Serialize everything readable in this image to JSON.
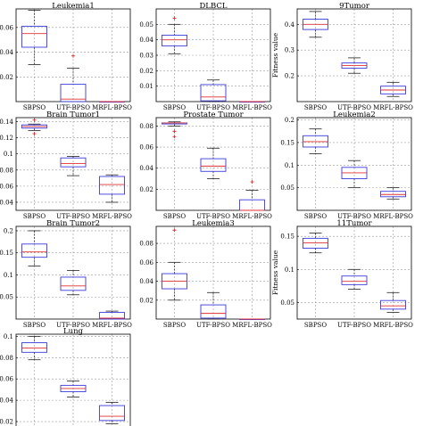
{
  "chart_data": [
    {
      "type": "box",
      "title": "Leukemia1",
      "ylabel": "Fitness value",
      "categories": [
        "SBPSO",
        "UTF-BPSO",
        "MRFL-BPSO"
      ],
      "ylim": [
        0,
        0.075
      ],
      "yticks": [
        0.02,
        0.04,
        0.06
      ],
      "yticklabels": [
        "0.02",
        "0.04",
        "0.06"
      ],
      "boxes": [
        {
          "min": 0.03,
          "q1": 0.044,
          "median": 0.055,
          "q3": 0.061,
          "max": 0.074,
          "outliers": []
        },
        {
          "min": 0,
          "q1": 0,
          "median": 0.002,
          "q3": 0.014,
          "max": 0.027,
          "outliers": [
            0.037
          ]
        },
        {
          "min": 0,
          "q1": 0,
          "median": 0,
          "q3": 0,
          "max": 0,
          "outliers": []
        }
      ]
    },
    {
      "type": "box",
      "title": "DLBCL",
      "ylabel": "",
      "categories": [
        "SBPSO",
        "UTF-BPSO",
        "MRFL-BPSO"
      ],
      "ylim": [
        0,
        0.06
      ],
      "yticks": [
        0.01,
        0.02,
        0.03,
        0.04,
        0.05
      ],
      "yticklabels": [
        "0.01",
        "0.02",
        "0.03",
        "0.04",
        "0.05"
      ],
      "boxes": [
        {
          "min": 0.031,
          "q1": 0.036,
          "median": 0.04,
          "q3": 0.043,
          "max": 0.05,
          "outliers": [
            0.054
          ]
        },
        {
          "min": 0,
          "q1": 0.0005,
          "median": 0.003,
          "q3": 0.011,
          "max": 0.014,
          "outliers": []
        },
        {
          "min": 0,
          "q1": 0,
          "median": 0,
          "q3": 0,
          "max": 0,
          "outliers": []
        }
      ]
    },
    {
      "type": "box",
      "title": "9Tumor",
      "ylabel": "Fitness value",
      "categories": [
        "SBPSO",
        "UTF-BPSO",
        "MRFL-BPSO"
      ],
      "ylim": [
        0.1,
        0.46
      ],
      "yticks": [
        0.2,
        0.3,
        0.4
      ],
      "yticklabels": [
        "0.2",
        "0.3",
        "0.4"
      ],
      "boxes": [
        {
          "min": 0.35,
          "q1": 0.38,
          "median": 0.4,
          "q3": 0.42,
          "max": 0.45,
          "outliers": []
        },
        {
          "min": 0.21,
          "q1": 0.23,
          "median": 0.24,
          "q3": 0.25,
          "max": 0.27,
          "outliers": []
        },
        {
          "min": 0.12,
          "q1": 0.13,
          "median": 0.145,
          "q3": 0.16,
          "max": 0.175,
          "outliers": []
        }
      ]
    },
    {
      "type": "box",
      "title": "Brain Tumor1",
      "ylabel": "Fitness value",
      "categories": [
        "SBPSO",
        "UTF-BPSO",
        "MRFL-BPSO"
      ],
      "ylim": [
        0.03,
        0.145
      ],
      "yticks": [
        0.04,
        0.06,
        0.08,
        0.1,
        0.12,
        0.14
      ],
      "yticklabels": [
        "0.04",
        "0.06",
        "0.08",
        "0.1",
        "0.12",
        "0.14"
      ],
      "boxes": [
        {
          "min": 0.129,
          "q1": 0.132,
          "median": 0.134,
          "q3": 0.136,
          "max": 0.137,
          "outliers": [
            0.125,
            0.142
          ]
        },
        {
          "min": 0.073,
          "q1": 0.084,
          "median": 0.088,
          "q3": 0.095,
          "max": 0.097,
          "outliers": []
        },
        {
          "min": 0.04,
          "q1": 0.05,
          "median": 0.062,
          "q3": 0.072,
          "max": 0.074,
          "outliers": []
        }
      ]
    },
    {
      "type": "box",
      "title": "Prostate Tumor",
      "ylabel": "",
      "categories": [
        "SBPSO",
        "UTF-BPSO",
        "MRFL-BPSO"
      ],
      "ylim": [
        0,
        0.088
      ],
      "yticks": [
        0.02,
        0.04,
        0.06,
        0.08
      ],
      "yticklabels": [
        "0.02",
        "0.04",
        "0.06",
        "0.08"
      ],
      "boxes": [
        {
          "min": 0.08,
          "q1": 0.082,
          "median": 0.083,
          "q3": 0.083,
          "max": 0.084,
          "outliers": [
            0.07,
            0.075
          ]
        },
        {
          "min": 0.03,
          "q1": 0.037,
          "median": 0.042,
          "q3": 0.049,
          "max": 0.059,
          "outliers": []
        },
        {
          "min": 0,
          "q1": 0,
          "median": 0,
          "q3": 0.01,
          "max": 0.019,
          "outliers": [
            0.027
          ]
        }
      ]
    },
    {
      "type": "box",
      "title": "Leukemia2",
      "ylabel": "",
      "categories": [
        "SBPSO",
        "UTF-BPSO",
        "MRFL-BPSO"
      ],
      "ylim": [
        0,
        0.205
      ],
      "yticks": [
        0.05,
        0.1,
        0.15,
        0.2
      ],
      "yticklabels": [
        "0.05",
        "0.1",
        "0.15",
        "0.2"
      ],
      "boxes": [
        {
          "min": 0.125,
          "q1": 0.14,
          "median": 0.152,
          "q3": 0.165,
          "max": 0.18,
          "outliers": []
        },
        {
          "min": 0.05,
          "q1": 0.07,
          "median": 0.083,
          "q3": 0.095,
          "max": 0.11,
          "outliers": []
        },
        {
          "min": 0.025,
          "q1": 0.03,
          "median": 0.035,
          "q3": 0.042,
          "max": 0.05,
          "outliers": []
        }
      ]
    },
    {
      "type": "box",
      "title": "Brain Tumor2",
      "ylabel": "Fitness value",
      "categories": [
        "SBPSO",
        "UTF-BPSO",
        "MRFL-BPSO"
      ],
      "ylim": [
        0,
        0.21
      ],
      "yticks": [
        0.05,
        0.1,
        0.15,
        0.2
      ],
      "yticklabels": [
        "0.05",
        "0.1",
        "0.15",
        "0.2"
      ],
      "boxes": [
        {
          "min": 0.12,
          "q1": 0.14,
          "median": 0.152,
          "q3": 0.17,
          "max": 0.2,
          "outliers": []
        },
        {
          "min": 0.055,
          "q1": 0.065,
          "median": 0.075,
          "q3": 0.095,
          "max": 0.11,
          "outliers": []
        },
        {
          "min": 0,
          "q1": 0,
          "median": 0.002,
          "q3": 0.015,
          "max": 0.018,
          "outliers": []
        }
      ]
    },
    {
      "type": "box",
      "title": "Leukemia3",
      "ylabel": "",
      "categories": [
        "SBPSO",
        "UTF-BPSO",
        "MRFL-BPSO"
      ],
      "ylim": [
        0,
        0.098
      ],
      "yticks": [
        0.02,
        0.04,
        0.06,
        0.08
      ],
      "yticklabels": [
        "0.02",
        "0.04",
        "0.06",
        "0.08"
      ],
      "boxes": [
        {
          "min": 0.02,
          "q1": 0.032,
          "median": 0.04,
          "q3": 0.048,
          "max": 0.06,
          "outliers": [
            0.094
          ]
        },
        {
          "min": 0,
          "q1": 0.001,
          "median": 0.006,
          "q3": 0.015,
          "max": 0.028,
          "outliers": []
        },
        {
          "min": 0,
          "q1": 0,
          "median": 0,
          "q3": 0,
          "max": 0,
          "outliers": []
        }
      ]
    },
    {
      "type": "box",
      "title": "11Tumor",
      "ylabel": "Fitness value",
      "categories": [
        "SBPSO",
        "UTF-BPSO",
        "MRFL-BPSO"
      ],
      "ylim": [
        0.025,
        0.165
      ],
      "yticks": [
        0.05,
        0.1,
        0.15
      ],
      "yticklabels": [
        "0.05",
        "0.1",
        "0.15"
      ],
      "boxes": [
        {
          "min": 0.125,
          "q1": 0.132,
          "median": 0.14,
          "q3": 0.147,
          "max": 0.155,
          "outliers": []
        },
        {
          "min": 0.07,
          "q1": 0.077,
          "median": 0.082,
          "q3": 0.09,
          "max": 0.1,
          "outliers": []
        },
        {
          "min": 0.035,
          "q1": 0.04,
          "median": 0.045,
          "q3": 0.053,
          "max": 0.065,
          "outliers": []
        }
      ]
    },
    {
      "type": "box",
      "title": "Lung",
      "ylabel": "Fitness value",
      "categories": [
        "SBPSO",
        "UTF-BPSO",
        "MRFL-BPSO"
      ],
      "ylim": [
        0.015,
        0.102
      ],
      "yticks": [
        0.02,
        0.04,
        0.06,
        0.08,
        0.1
      ],
      "yticklabels": [
        "0.02",
        "0.04",
        "0.06",
        "0.08",
        "0.1"
      ],
      "boxes": [
        {
          "min": 0.078,
          "q1": 0.085,
          "median": 0.089,
          "q3": 0.094,
          "max": 0.1,
          "outliers": []
        },
        {
          "min": 0.043,
          "q1": 0.048,
          "median": 0.051,
          "q3": 0.054,
          "max": 0.058,
          "outliers": []
        },
        {
          "min": 0.018,
          "q1": 0.021,
          "median": 0.025,
          "q3": 0.035,
          "max": 0.038,
          "outliers": []
        }
      ]
    }
  ]
}
